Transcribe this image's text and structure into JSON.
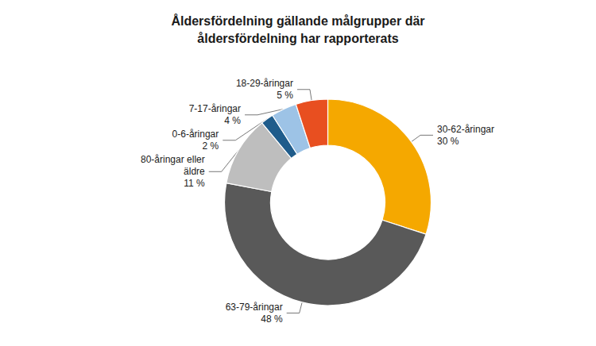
{
  "chart_data": {
    "type": "pie",
    "title": "Åldersfördelning gällande målgrupper där\nåldersfördelning har rapporterats",
    "categories": [
      "30-62-åringar",
      "63-79-åringar",
      "80-åringar eller\näldre",
      "0-6-åringar",
      "7-17-åringar",
      "18-29-åringar"
    ],
    "values": [
      30,
      48,
      11,
      2,
      4,
      5
    ],
    "value_labels": [
      "30 %",
      "48 %",
      "11 %",
      "2 %",
      "4 %",
      "5 %"
    ],
    "colors": [
      "#F5A800",
      "#595959",
      "#BEBEBE",
      "#1F5C8B",
      "#9DC3E6",
      "#E84F20"
    ],
    "data_labels": true
  }
}
